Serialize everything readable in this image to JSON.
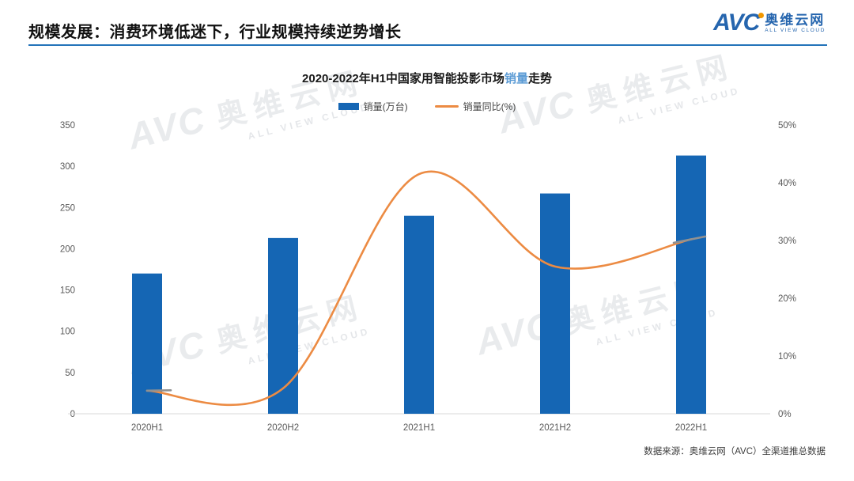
{
  "header": {
    "title": "规模发展：消费环境低迷下，行业规模持续逆势增长"
  },
  "logo": {
    "brand": "AVC",
    "name": "奥维云网",
    "subtext": "ALL VIEW CLOUD"
  },
  "watermark": {
    "brand": "AVC",
    "name": "奥维云网",
    "subtext": "ALL VIEW CLOUD"
  },
  "chart_data": {
    "type": "bar+line",
    "title": "2020-2022年H1中国家用智能投影市场销量走势",
    "title_parts": {
      "prefix": "2020-2022年H1中国家用智能投影市场",
      "highlight": "销量",
      "suffix": "走势"
    },
    "categories": [
      "2020H1",
      "2020H2",
      "2021H1",
      "2021H2",
      "2022H1"
    ],
    "series": [
      {
        "name": "销量(万台)",
        "type": "bar",
        "axis": "left",
        "color": "#1566B4",
        "values": [
          170,
          213,
          240,
          267,
          313
        ]
      },
      {
        "name": "销量同比(%)",
        "type": "line",
        "axis": "right",
        "color": "#EC8B43",
        "values": [
          4.0,
          4.4,
          41.5,
          25.5,
          30.2
        ]
      }
    ],
    "left_axis": {
      "min": 0,
      "max": 350,
      "ticks": [
        0,
        50,
        100,
        150,
        200,
        250,
        300,
        350
      ]
    },
    "right_axis": {
      "min": 0,
      "max": 50,
      "ticks": [
        0,
        10,
        20,
        30,
        40,
        50
      ],
      "suffix": "%"
    },
    "grid": false,
    "legend_position": "top-center"
  },
  "footer": {
    "source": "数据来源：奥维云网（AVC）全渠道推总数据"
  },
  "theme": {
    "accent_blue": "#2373B9",
    "bar_blue": "#1566B4",
    "line_orange": "#EC8B43",
    "highlight_blue": "#5B9BD5",
    "axis_line": "#D9D9D9",
    "line_end_cap_gray": "#919191"
  }
}
